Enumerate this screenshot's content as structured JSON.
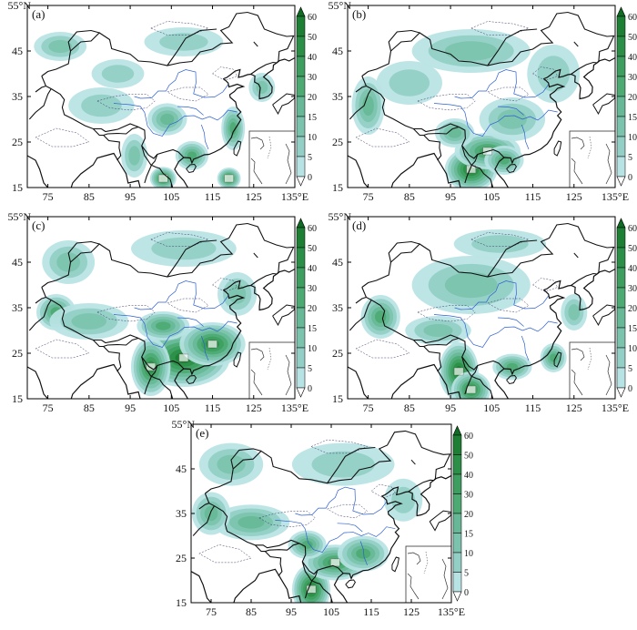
{
  "units": {
    "lat_suffix": "°N",
    "lon_suffix": "°E"
  },
  "colors": {
    "ocean": "#ffffff",
    "coast": "#111111",
    "river": "#2e5fd0",
    "contour": "#3a3a6a",
    "level_colors": [
      "#d4eef4",
      "#b8e3e4",
      "#93cfc5",
      "#7cc3ad",
      "#66b896",
      "#4daa73",
      "#3d9e5f",
      "#2b8f48",
      "#1c7f34",
      "#0f6c24"
    ]
  },
  "chart_data": [
    {
      "panel": "(a)",
      "type": "heatmap",
      "lon_ticks": [
        75,
        85,
        95,
        105,
        115,
        125,
        135
      ],
      "lat_ticks": [
        15,
        25,
        35,
        45,
        55
      ],
      "xlim": [
        70,
        135
      ],
      "ylim": [
        15,
        55
      ],
      "colorbar_levels": [
        0,
        5,
        10,
        15,
        20,
        30,
        40,
        50,
        60
      ],
      "features": [
        {
          "lon": 103,
          "lat": 17,
          "value": 40,
          "sx": 2.0,
          "sy": 1.6
        },
        {
          "lon": 119,
          "lat": 17,
          "value": 40,
          "sx": 1.8,
          "sy": 1.5
        },
        {
          "lon": 104,
          "lat": 30,
          "value": 15,
          "sx": 3.0,
          "sy": 2.2
        },
        {
          "lon": 110,
          "lat": 22,
          "value": 20,
          "sx": 2.5,
          "sy": 2.0
        },
        {
          "lon": 120,
          "lat": 28,
          "value": 20,
          "sx": 1.8,
          "sy": 3.0
        },
        {
          "lon": 88,
          "lat": 33,
          "value": 8,
          "sx": 5.0,
          "sy": 2.5
        },
        {
          "lon": 78,
          "lat": 46,
          "value": 10,
          "sx": 4.0,
          "sy": 2.0
        },
        {
          "lon": 108,
          "lat": 47,
          "value": 8,
          "sx": 6.0,
          "sy": 2.0
        },
        {
          "lon": 92,
          "lat": 40,
          "value": 6,
          "sx": 4.0,
          "sy": 2.0
        },
        {
          "lon": 127,
          "lat": 37,
          "value": 10,
          "sx": 2.0,
          "sy": 2.0
        },
        {
          "lon": 96,
          "lat": 22,
          "value": 12,
          "sx": 2.0,
          "sy": 3.0
        }
      ]
    },
    {
      "panel": "(b)",
      "type": "heatmap",
      "lon_ticks": [
        75,
        85,
        95,
        105,
        115,
        125,
        135
      ],
      "lat_ticks": [
        15,
        25,
        35,
        45,
        55
      ],
      "xlim": [
        70,
        135
      ],
      "ylim": [
        15,
        55
      ],
      "colorbar_levels": [
        0,
        5,
        10,
        15,
        20,
        30,
        40,
        50,
        60
      ],
      "features": [
        {
          "lon": 100,
          "lat": 19,
          "value": 50,
          "sx": 4.0,
          "sy": 3.0
        },
        {
          "lon": 104,
          "lat": 23,
          "value": 30,
          "sx": 5.0,
          "sy": 2.5
        },
        {
          "lon": 108,
          "lat": 21,
          "value": 25,
          "sx": 3.0,
          "sy": 2.0
        },
        {
          "lon": 96,
          "lat": 27,
          "value": 15,
          "sx": 3.0,
          "sy": 2.0
        },
        {
          "lon": 75,
          "lat": 33,
          "value": 15,
          "sx": 2.5,
          "sy": 4.0
        },
        {
          "lon": 110,
          "lat": 30,
          "value": 10,
          "sx": 5.0,
          "sy": 3.0
        },
        {
          "lon": 100,
          "lat": 45,
          "value": 10,
          "sx": 9.0,
          "sy": 3.0
        },
        {
          "lon": 85,
          "lat": 38,
          "value": 8,
          "sx": 5.0,
          "sy": 3.0
        },
        {
          "lon": 120,
          "lat": 40,
          "value": 8,
          "sx": 4.0,
          "sy": 4.0
        }
      ]
    },
    {
      "panel": "(c)",
      "type": "heatmap",
      "lon_ticks": [
        75,
        85,
        95,
        105,
        115,
        125,
        135
      ],
      "lat_ticks": [
        15,
        25,
        35,
        45,
        55
      ],
      "xlim": [
        70,
        135
      ],
      "ylim": [
        15,
        55
      ],
      "colorbar_levels": [
        0,
        5,
        10,
        15,
        20,
        30,
        40,
        50,
        60
      ],
      "features": [
        {
          "lon": 108,
          "lat": 24,
          "value": 50,
          "sx": 7.0,
          "sy": 4.0
        },
        {
          "lon": 115,
          "lat": 27,
          "value": 40,
          "sx": 5.0,
          "sy": 3.0
        },
        {
          "lon": 100,
          "lat": 22,
          "value": 40,
          "sx": 3.0,
          "sy": 4.0
        },
        {
          "lon": 103,
          "lat": 31,
          "value": 20,
          "sx": 4.0,
          "sy": 2.0
        },
        {
          "lon": 77,
          "lat": 34,
          "value": 25,
          "sx": 3.0,
          "sy": 2.5
        },
        {
          "lon": 85,
          "lat": 32,
          "value": 12,
          "sx": 6.0,
          "sy": 2.5
        },
        {
          "lon": 80,
          "lat": 45,
          "value": 10,
          "sx": 4.0,
          "sy": 3.0
        },
        {
          "lon": 108,
          "lat": 48,
          "value": 8,
          "sx": 8.0,
          "sy": 2.5
        },
        {
          "lon": 121,
          "lat": 38,
          "value": 10,
          "sx": 3.0,
          "sy": 3.0
        }
      ]
    },
    {
      "panel": "(d)",
      "type": "heatmap",
      "lon_ticks": [
        75,
        85,
        95,
        105,
        115,
        125,
        135
      ],
      "lat_ticks": [
        15,
        25,
        35,
        45,
        55
      ],
      "xlim": [
        70,
        135
      ],
      "ylim": [
        15,
        55
      ],
      "colorbar_levels": [
        0,
        5,
        10,
        15,
        20,
        30,
        40,
        50,
        60
      ],
      "features": [
        {
          "lon": 97,
          "lat": 21,
          "value": 50,
          "sx": 3.0,
          "sy": 4.0
        },
        {
          "lon": 100,
          "lat": 17,
          "value": 40,
          "sx": 3.0,
          "sy": 2.5
        },
        {
          "lon": 110,
          "lat": 22,
          "value": 25,
          "sx": 3.0,
          "sy": 1.8
        },
        {
          "lon": 120,
          "lat": 24,
          "value": 20,
          "sx": 2.0,
          "sy": 2.0
        },
        {
          "lon": 78,
          "lat": 33,
          "value": 20,
          "sx": 3.0,
          "sy": 3.0
        },
        {
          "lon": 92,
          "lat": 30,
          "value": 12,
          "sx": 5.0,
          "sy": 2.0
        },
        {
          "lon": 100,
          "lat": 40,
          "value": 10,
          "sx": 9.0,
          "sy": 4.0
        },
        {
          "lon": 107,
          "lat": 49,
          "value": 8,
          "sx": 7.0,
          "sy": 2.0
        },
        {
          "lon": 125,
          "lat": 34,
          "value": 12,
          "sx": 2.0,
          "sy": 2.5
        }
      ]
    },
    {
      "panel": "(e)",
      "type": "heatmap",
      "lon_ticks": [
        75,
        85,
        95,
        105,
        115,
        125,
        135
      ],
      "lat_ticks": [
        15,
        25,
        35,
        45,
        55
      ],
      "xlim": [
        70,
        135
      ],
      "ylim": [
        15,
        55
      ],
      "colorbar_levels": [
        0,
        5,
        10,
        15,
        20,
        30,
        40,
        50,
        60
      ],
      "features": [
        {
          "lon": 100,
          "lat": 18,
          "value": 50,
          "sx": 3.0,
          "sy": 3.5
        },
        {
          "lon": 106,
          "lat": 24,
          "value": 30,
          "sx": 5.0,
          "sy": 2.5
        },
        {
          "lon": 113,
          "lat": 26,
          "value": 25,
          "sx": 4.0,
          "sy": 2.5
        },
        {
          "lon": 99,
          "lat": 28,
          "value": 20,
          "sx": 3.0,
          "sy": 2.0
        },
        {
          "lon": 85,
          "lat": 33,
          "value": 15,
          "sx": 6.0,
          "sy": 2.5
        },
        {
          "lon": 75,
          "lat": 35,
          "value": 15,
          "sx": 3.0,
          "sy": 3.0
        },
        {
          "lon": 80,
          "lat": 46,
          "value": 10,
          "sx": 5.0,
          "sy": 3.0
        },
        {
          "lon": 108,
          "lat": 46,
          "value": 8,
          "sx": 8.0,
          "sy": 3.0
        },
        {
          "lon": 123,
          "lat": 38,
          "value": 8,
          "sx": 3.0,
          "sy": 3.0
        }
      ]
    }
  ]
}
